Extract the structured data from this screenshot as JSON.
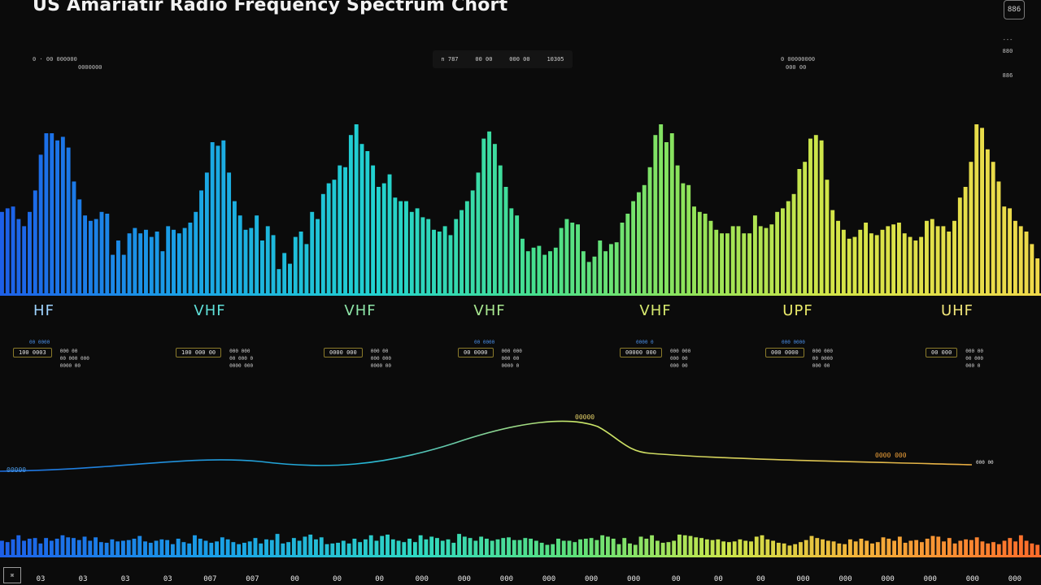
{
  "title": "US Amariatir Radio Frequency Spectrum Chort",
  "corner_button": "886",
  "side_items": [
    "---",
    "880",
    "886"
  ],
  "top_meta_left": [
    "0 · 00 000000",
    "0000000"
  ],
  "top_legend": [
    "n 787",
    "00 00",
    "000 00",
    "10305"
  ],
  "top_meta_right": [
    "0 00000000",
    "000 00"
  ],
  "chart_data": {
    "type": "bar",
    "title": "US Amariatir Radio Frequency Spectrum Chort",
    "xlabel": "",
    "ylabel": "",
    "ylim": [
      0,
      100
    ],
    "grid": false,
    "legend": "none",
    "bands": [
      {
        "label": "HF",
        "color": "#9ed3ff",
        "box": "100 0003",
        "note": "00 0000",
        "desc": [
          "000 00",
          "00 000 000",
          "0000 00"
        ]
      },
      {
        "label": "VHF",
        "color": "#5fe0d9",
        "box": "100 000 00",
        "note": "",
        "desc": [
          "000 000",
          "00 000 0",
          "0000 000"
        ]
      },
      {
        "label": "VHF",
        "color": "#8ee6a8",
        "box": "0000 000",
        "note": "",
        "desc": [
          "000 00",
          "000 000",
          "0000 00"
        ]
      },
      {
        "label": "VHF",
        "color": "#a8e890",
        "box": "00 0000",
        "note": "00 0000",
        "desc": [
          "000 000",
          "000 00",
          "0000 0"
        ]
      },
      {
        "label": "VHF",
        "color": "#d7ea6f",
        "box": "00000 000",
        "note": "0000 0",
        "desc": [
          "000 000",
          "000 00",
          "000 00"
        ]
      },
      {
        "label": "UPF",
        "color": "#eaea6a",
        "box": "000 0000",
        "note": "000 0000",
        "desc": [
          "000 000",
          "00 0000",
          "000 00"
        ]
      },
      {
        "label": "UHF",
        "color": "#f1e67a",
        "box": "00 000",
        "note": "",
        "desc": [
          "000 00",
          "00 000",
          "000 0"
        ]
      }
    ],
    "top_spectrum": [
      46,
      48,
      49,
      42,
      38,
      46,
      58,
      78,
      90,
      90,
      86,
      88,
      82,
      63,
      53,
      44,
      41,
      42,
      46,
      45,
      22,
      30,
      22,
      34,
      37,
      34,
      36,
      32,
      35,
      24,
      38,
      36,
      34,
      37,
      40,
      46,
      58,
      68,
      85,
      83,
      86,
      68,
      52,
      44,
      36,
      37,
      44,
      30,
      38,
      33,
      14,
      23,
      17,
      32,
      35,
      28,
      46,
      42,
      56,
      62,
      64,
      72,
      71,
      89,
      95,
      84,
      80,
      72,
      60,
      62,
      67,
      54,
      52,
      52,
      46,
      48,
      43,
      42,
      36,
      35,
      38,
      33,
      42,
      47,
      52,
      58,
      68,
      87,
      91,
      84,
      72,
      60,
      48,
      44,
      31,
      24,
      26,
      27,
      22,
      24,
      26,
      37,
      42,
      40,
      39,
      24,
      18,
      21,
      30,
      24,
      28,
      29,
      40,
      45,
      52,
      57,
      61,
      71,
      89,
      95,
      85,
      90,
      72,
      62,
      61,
      49,
      46,
      45,
      41,
      36,
      34,
      34,
      38,
      38,
      34,
      34,
      44,
      38,
      37,
      39,
      46,
      48,
      52,
      56,
      70,
      74,
      87,
      89,
      86,
      64,
      47,
      41,
      36,
      31,
      32,
      36,
      40,
      34,
      33,
      36,
      38,
      39,
      40,
      34,
      32,
      30,
      32,
      41,
      42,
      38,
      38,
      35,
      41,
      54,
      60,
      74,
      95,
      93,
      81,
      74,
      63,
      49,
      48,
      41,
      38,
      35,
      28,
      20
    ],
    "bottom_spectrum": [
      22,
      20,
      24,
      30,
      22,
      25,
      26,
      18,
      26,
      22,
      25,
      30,
      27,
      26,
      23,
      28,
      22,
      27,
      20,
      19,
      24,
      21,
      22,
      23,
      25,
      29,
      21,
      19,
      22,
      24,
      23,
      17,
      25,
      20,
      18,
      30,
      25,
      22,
      19,
      21,
      27,
      24,
      20,
      17,
      19,
      21,
      26,
      18,
      24,
      23,
      32,
      18,
      20,
      26,
      22,
      28,
      31,
      24,
      27,
      17,
      18,
      19,
      22,
      18,
      25,
      20,
      24,
      30,
      22,
      29,
      31,
      24,
      22,
      20,
      25,
      20,
      30,
      24,
      28,
      26,
      22,
      24,
      19,
      32,
      28,
      26,
      22,
      28,
      25,
      22,
      24,
      26,
      27,
      23,
      23,
      26,
      25,
      22,
      19,
      16,
      17,
      25,
      22,
      22,
      20,
      24,
      25,
      26,
      23,
      30,
      28,
      25,
      17,
      26,
      18,
      16,
      28,
      25,
      30,
      22,
      19,
      20,
      22,
      31,
      30,
      29,
      27,
      26,
      24,
      23,
      24,
      21,
      20,
      21,
      24,
      22,
      21,
      28,
      30,
      24,
      22,
      19,
      18,
      15,
      17,
      20,
      23,
      29,
      26,
      24,
      22,
      21,
      18,
      17,
      24,
      21,
      25,
      22,
      18,
      20,
      27,
      25,
      22,
      28,
      19,
      22,
      23,
      20,
      25,
      29,
      28,
      21,
      26,
      18,
      22,
      24,
      23,
      27,
      21,
      18,
      20,
      17,
      22,
      26,
      21,
      30,
      22,
      18,
      16
    ],
    "curve": {
      "label_peak": "00000",
      "label_right": "0000 000",
      "label_left": "00000",
      "label_end": "000 00"
    },
    "x_ticks": [
      "03",
      "03",
      "03",
      "03",
      "007",
      "007",
      "00",
      "00",
      "00",
      "000",
      "000",
      "000",
      "000",
      "000",
      "000",
      "00",
      "00",
      "00",
      "000",
      "000",
      "000",
      "000",
      "000",
      "000"
    ]
  }
}
